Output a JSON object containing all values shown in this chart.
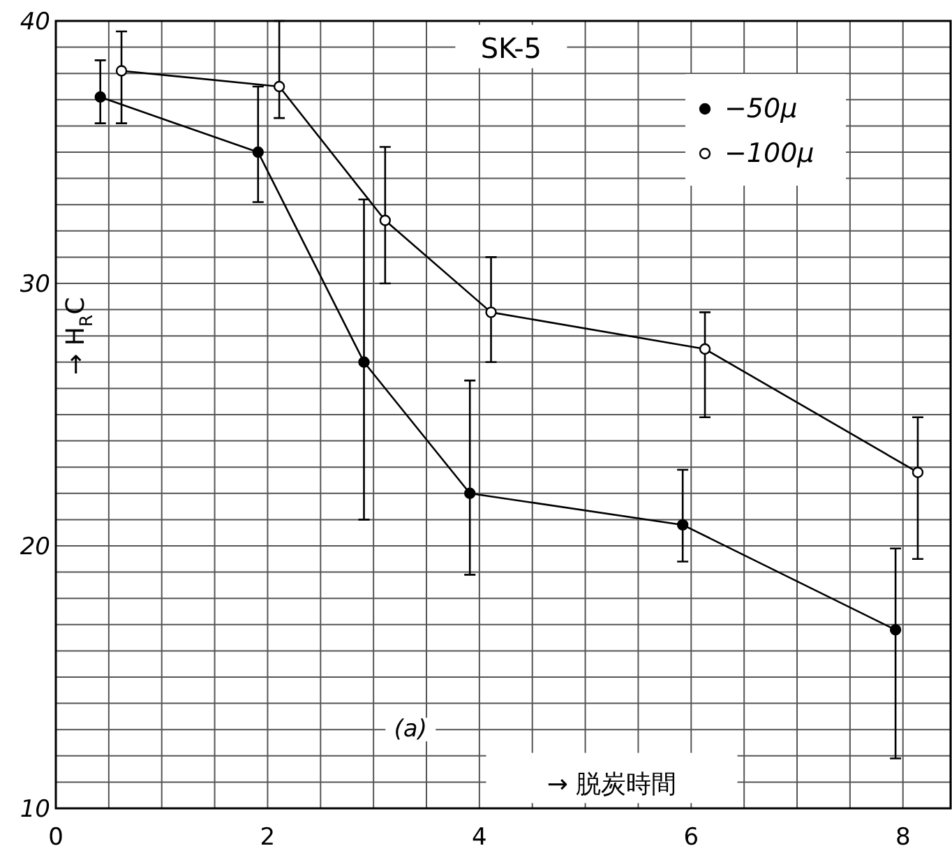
{
  "chart_data": {
    "type": "line",
    "title": "SK-5",
    "xlabel": "→ 脱炭時間",
    "ylabel": "→ H$_{R}$C",
    "annotations": [
      "(a)"
    ],
    "xlim": [
      0,
      8.45
    ],
    "ylim": [
      10,
      40
    ],
    "xticks": [
      0,
      {
        "value": 0.5,
        "label": null
      },
      {
        "value": 1,
        "label": null
      },
      {
        "value": 1.5,
        "label": null
      },
      2,
      {
        "value": 2.5,
        "label": null
      },
      {
        "value": 3,
        "label": null
      },
      {
        "value": 3.5,
        "label": null
      },
      4,
      {
        "value": 4.5,
        "label": null
      },
      {
        "value": 5,
        "label": null
      },
      {
        "value": 5.5,
        "label": null
      },
      6,
      {
        "value": 6.5,
        "label": null
      },
      {
        "value": 7,
        "label": null
      },
      {
        "value": 7.5,
        "label": null
      },
      8
    ],
    "yticks": [
      10,
      {
        "value": 11,
        "label": null
      },
      {
        "value": 12,
        "label": null
      },
      {
        "value": 13,
        "label": null
      },
      {
        "value": 14,
        "label": null
      },
      {
        "value": 15,
        "label": null
      },
      {
        "value": 16,
        "label": null
      },
      {
        "value": 17,
        "label": null
      },
      {
        "value": 18,
        "label": null
      },
      {
        "value": 19,
        "label": null
      },
      20,
      {
        "value": 21,
        "label": null
      },
      {
        "value": 22,
        "label": null
      },
      {
        "value": 23,
        "label": null
      },
      {
        "value": 24,
        "label": null
      },
      {
        "value": 25,
        "label": null
      },
      {
        "value": 26,
        "label": null
      },
      {
        "value": 27,
        "label": null
      },
      {
        "value": 28,
        "label": null
      },
      {
        "value": 29,
        "label": null
      },
      30,
      {
        "value": 31,
        "label": null
      },
      {
        "value": 32,
        "label": null
      },
      {
        "value": 33,
        "label": null
      },
      {
        "value": 34,
        "label": null
      },
      {
        "value": 35,
        "label": null
      },
      {
        "value": 36,
        "label": null
      },
      {
        "value": 37,
        "label": null
      },
      {
        "value": 38,
        "label": null
      },
      {
        "value": 39,
        "label": null
      },
      40
    ],
    "grid": true,
    "legend": "top right",
    "marker": "circle",
    "line_style": "solid",
    "series": [
      {
        "name": "−50μ",
        "color": "#000000",
        "x": [
          0.42,
          1.91,
          2.91,
          3.91,
          5.92,
          7.93
        ],
        "values": [
          37.1,
          35.0,
          27.0,
          22.0,
          20.8,
          16.8
        ],
        "errors": [
          [
            36.1,
            38.5
          ],
          [
            33.1,
            37.5
          ],
          [
            21.0,
            33.2
          ],
          [
            18.9,
            26.3
          ],
          [
            19.4,
            22.9
          ],
          [
            11.9,
            19.9
          ]
        ]
      },
      {
        "name": "−100μ",
        "color": "#000000",
        "x": [
          0.62,
          2.11,
          3.11,
          4.11,
          6.13,
          8.14
        ],
        "values": [
          38.1,
          37.5,
          32.4,
          28.9,
          27.5,
          22.8
        ],
        "errors": [
          [
            36.1,
            39.6
          ],
          [
            36.3,
            40.0
          ],
          [
            30.0,
            35.2
          ],
          [
            27.0,
            31.0
          ],
          [
            24.9,
            28.9
          ],
          [
            19.5,
            24.9
          ]
        ]
      }
    ]
  }
}
